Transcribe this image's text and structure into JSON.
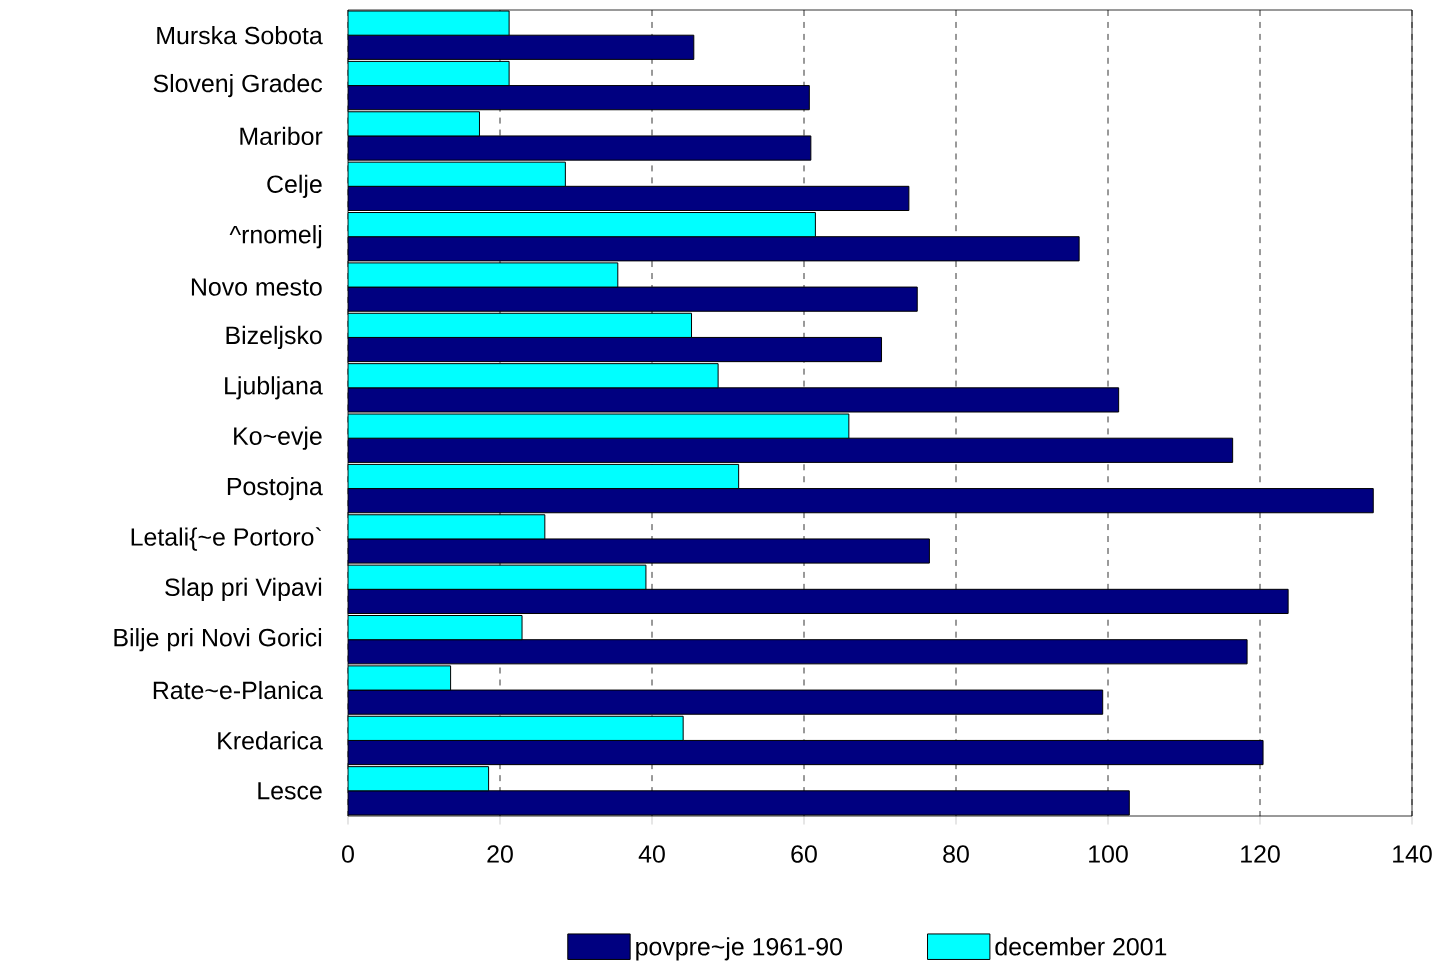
{
  "chart_data": {
    "type": "bar",
    "orientation": "horizontal",
    "categories": [
      "Murska Sobota",
      "Slovenj Gradec",
      "Maribor",
      "Celje",
      "^rnomelj",
      "Novo mesto",
      "Bizeljsko",
      "Ljubljana",
      "Ko~evje",
      "Postojna",
      "Letali{~e Portoro`",
      "Slap pri Vipavi",
      "Bilje pri Novi Gorici",
      "Rate~e-Planica",
      "Kredarica",
      "Lesce"
    ],
    "series": [
      {
        "name": "povpre~je 1961-90",
        "color": "#000080",
        "values": [
          45.5,
          60.7,
          60.9,
          73.8,
          96.2,
          74.9,
          70.2,
          101.4,
          116.4,
          134.9,
          76.5,
          123.7,
          118.3,
          99.3,
          120.4,
          102.8
        ]
      },
      {
        "name": "december 2001",
        "color": "#00ffff",
        "values": [
          21.2,
          21.2,
          17.3,
          28.6,
          61.5,
          35.5,
          45.2,
          48.7,
          65.9,
          51.4,
          25.9,
          39.2,
          22.9,
          13.5,
          44.1,
          18.5
        ]
      }
    ],
    "xlim": [
      0,
      140
    ],
    "xticks": [
      0,
      20,
      40,
      60,
      80,
      100,
      120,
      140
    ],
    "grid": "x",
    "legend": "bottom"
  }
}
